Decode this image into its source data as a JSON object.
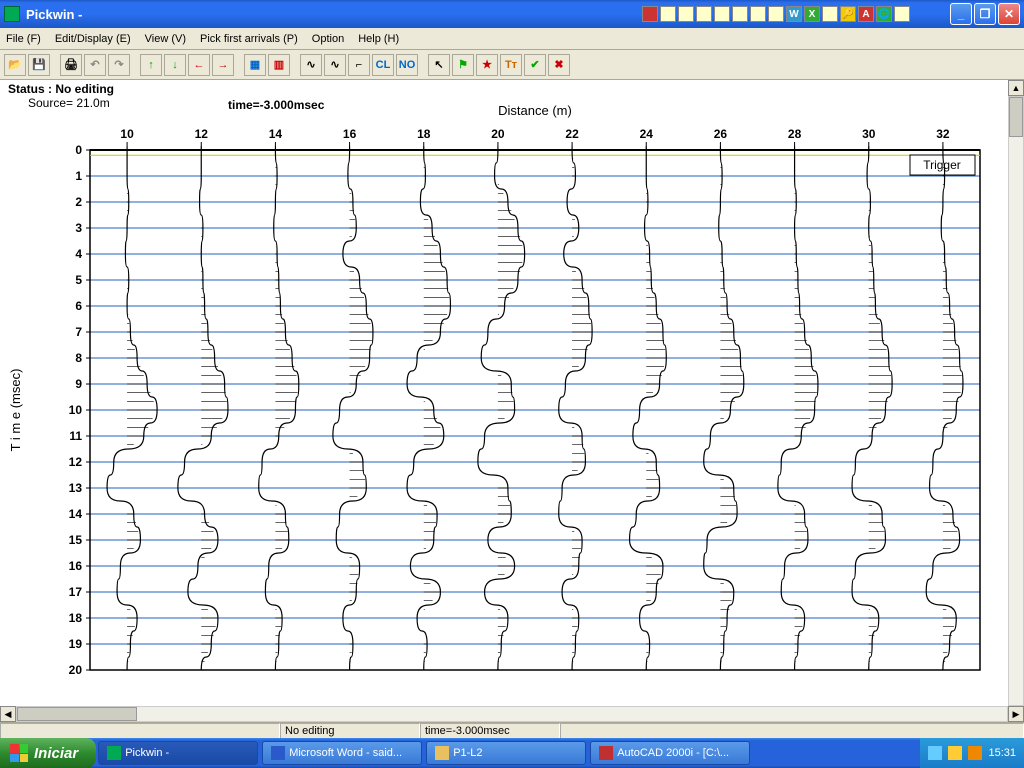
{
  "window": {
    "title": "Pickwin -",
    "minimize": "_",
    "maximize": "❐",
    "close": "✕"
  },
  "menu": {
    "file": "File (F)",
    "edit": "Edit/Display (E)",
    "view": "View (V)",
    "pick": "Pick first arrivals (P)",
    "option": "Option",
    "help": "Help (H)"
  },
  "toolbar_icons": [
    "open-icon",
    "save-icon",
    "print-icon",
    "undo-icon",
    "redo-icon",
    "up-icon",
    "down-icon",
    "left-icon",
    "right-icon",
    "grid1-icon",
    "grid2-icon",
    "wave-icon",
    "wave2-icon",
    "step-icon",
    "clip-icon",
    "norm-icon",
    "cursor-icon",
    "flag-icon",
    "star-icon",
    "tt-icon",
    "check-icon",
    "x-icon"
  ],
  "toolbar_glyphs": [
    "📂",
    "💾",
    "🖨",
    "↶",
    "↷",
    "↑",
    "↓",
    "←",
    "→",
    "▦",
    "▥",
    "∿",
    "∿",
    "⌐",
    "CL",
    "NO",
    "↖",
    "⚑",
    "★",
    "Tᴛ",
    "✔",
    "✖"
  ],
  "toolbar_colors": [
    "#8a6",
    "#000",
    "#000",
    "#888",
    "#888",
    "#0a0",
    "#0a0",
    "#c00",
    "#c00",
    "#06c",
    "#c00",
    "#000",
    "#000",
    "#000",
    "#06c",
    "#06c",
    "#000",
    "#0a0",
    "#c00",
    "#c60",
    "#0a0",
    "#c00"
  ],
  "status": {
    "line": "Status : No editing",
    "source": "Source= 21.0m",
    "time": "time=-3.000msec"
  },
  "chart": {
    "xlabel": "Distance (m)",
    "ylabel": "T i m e (msec)",
    "trigger_label": "Trigger",
    "x_ticks": [
      10,
      12,
      14,
      16,
      18,
      20,
      22,
      24,
      26,
      28,
      30,
      32
    ],
    "y_ticks": [
      0,
      1,
      2,
      3,
      4,
      5,
      6,
      7,
      8,
      9,
      10,
      11,
      12,
      13,
      14,
      15,
      16,
      17,
      18,
      19,
      20
    ],
    "x_range": [
      9,
      33
    ],
    "y_range": [
      0,
      20
    ],
    "grid_color": "#2060c0",
    "axis_color": "#000000",
    "trace_color": "#000000",
    "background": "#ffffff",
    "label_fontsize": 13,
    "tick_fontsize": 12,
    "tick_fontweight": "bold",
    "trace_amplitude": 0.9,
    "traces": [
      {
        "x": 10,
        "offsets": [
          0,
          0,
          0.05,
          0,
          -0.05,
          0.05,
          0,
          0.1,
          0.3,
          0.6,
          0.9,
          0.5,
          -0.4,
          -0.6,
          0.2,
          0.4,
          -0.2,
          -0.3,
          0.3,
          0.1,
          0
        ]
      },
      {
        "x": 12,
        "offsets": [
          0,
          0,
          -0.05,
          0.05,
          0,
          0.05,
          0.1,
          0.2,
          0.4,
          0.7,
          0.8,
          0.3,
          -0.5,
          -0.7,
          0.1,
          0.5,
          -0.1,
          -0.4,
          0.5,
          0.3,
          0
        ]
      },
      {
        "x": 14,
        "offsets": [
          0,
          0.05,
          0,
          -0.05,
          0.05,
          0.1,
          0.15,
          0.3,
          0.5,
          0.7,
          0.6,
          0.1,
          -0.4,
          -0.5,
          0.3,
          0.4,
          -0.2,
          -0.3,
          0.2,
          0.1,
          0
        ]
      },
      {
        "x": 16,
        "offsets": [
          0,
          -0.05,
          0.1,
          0.2,
          -0.2,
          0.3,
          0.5,
          0.7,
          0.6,
          0.2,
          -0.3,
          -0.5,
          0.4,
          0.5,
          -0.3,
          -0.4,
          0.3,
          0.2,
          -0.2,
          0.1,
          0
        ]
      },
      {
        "x": 18,
        "offsets": [
          0,
          0.05,
          -0.1,
          0.25,
          0.5,
          0.7,
          0.8,
          0.5,
          -0.2,
          -0.5,
          0.3,
          0.6,
          -0.3,
          -0.5,
          0.4,
          0.3,
          -0.4,
          0.5,
          -0.2,
          0.1,
          0
        ]
      },
      {
        "x": 20,
        "offsets": [
          0,
          -0.1,
          0.3,
          0.6,
          0.8,
          0.6,
          0.2,
          -0.3,
          -0.5,
          0.4,
          0.5,
          -0.4,
          -0.6,
          0.3,
          0.4,
          -0.3,
          0.5,
          -0.4,
          0.3,
          0.1,
          0
        ]
      },
      {
        "x": 22,
        "offsets": [
          0,
          0.1,
          -0.15,
          0.2,
          -0.25,
          0.3,
          0.5,
          0.6,
          0.4,
          -0.2,
          -0.4,
          0.3,
          0.4,
          -0.3,
          -0.4,
          0.3,
          0.2,
          -0.3,
          0.2,
          0.1,
          0
        ]
      },
      {
        "x": 24,
        "offsets": [
          0,
          0,
          0.05,
          -0.05,
          0.1,
          0.15,
          0.3,
          0.5,
          0.6,
          0.4,
          -0.2,
          -0.4,
          0.3,
          0.4,
          -0.3,
          -0.5,
          0.5,
          0.3,
          -0.2,
          0.1,
          0
        ]
      },
      {
        "x": 26,
        "offsets": [
          0,
          0.05,
          0,
          -0.05,
          0.05,
          0.1,
          0.2,
          0.4,
          0.6,
          0.7,
          0.3,
          -0.3,
          -0.5,
          0.4,
          0.5,
          -0.4,
          -0.5,
          0.4,
          0.2,
          0.1,
          0
        ]
      },
      {
        "x": 28,
        "offsets": [
          0,
          0,
          0.05,
          0,
          0.05,
          0.1,
          0.15,
          0.3,
          0.5,
          0.7,
          0.6,
          0.2,
          -0.4,
          -0.5,
          0.3,
          0.4,
          -0.3,
          -0.4,
          0.3,
          0.1,
          0
        ]
      },
      {
        "x": 30,
        "offsets": [
          0,
          -0.05,
          0.05,
          0,
          0.1,
          0.15,
          0.2,
          0.4,
          0.6,
          0.7,
          0.5,
          0.1,
          -0.4,
          -0.5,
          0.4,
          0.5,
          -0.4,
          -0.5,
          0.3,
          0.1,
          0
        ]
      },
      {
        "x": 32,
        "offsets": [
          0,
          0.05,
          0,
          -0.05,
          0.05,
          0.1,
          0.2,
          0.35,
          0.5,
          0.6,
          0.4,
          0,
          -0.3,
          -0.4,
          0.3,
          0.5,
          -0.3,
          -0.5,
          0.4,
          0.2,
          0
        ]
      }
    ]
  },
  "bottom_status": {
    "cell1": "No editing",
    "cell2": "time=-3.000msec"
  },
  "taskbar": {
    "start": "Iniciar",
    "items": [
      {
        "label": "Pickwin -",
        "active": true,
        "color": "#0a5"
      },
      {
        "label": "Microsoft Word - said...",
        "active": false,
        "color": "#2a5aca"
      },
      {
        "label": "P1-L2",
        "active": false,
        "color": "#e8c060"
      },
      {
        "label": "AutoCAD 2000i - [C:\\...",
        "active": false,
        "color": "#c03030"
      }
    ],
    "clock": "15:31"
  }
}
